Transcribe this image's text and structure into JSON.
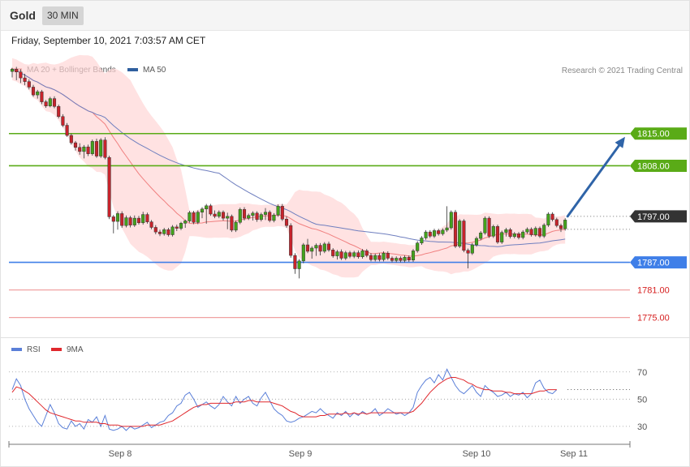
{
  "header": {
    "symbol": "Gold",
    "timeframe": "30 MIN",
    "datetime": "Friday, September 10, 2021 7:03:57 AM CET"
  },
  "legend": {
    "ma20": "MA 20 + Bollinger Bands",
    "ma50": "MA 50",
    "copyright": "Research © 2021 Trading Central"
  },
  "rsi_legend": {
    "rsi": "RSI",
    "ma": "9MA"
  },
  "colors": {
    "bull": "#43a31c",
    "bear": "#c8232b",
    "resistance": "#5aab17",
    "support": "#3f7fe8",
    "support_light": "#f0a2a2",
    "price": "#333333",
    "arrow": "#2f64a8",
    "bands": "#ffd6d6",
    "ma20": "#f08080",
    "ma50": "#6f7fbf",
    "rsi": "#5a7fd8",
    "rsi_ma": "#e0282d"
  },
  "chart_data": [
    {
      "type": "candlestick",
      "panel": "price",
      "y_range": [
        1770,
        1828
      ],
      "x_ticks": [
        "Sep 8",
        "Sep 9",
        "Sep 10",
        "Sep 11"
      ],
      "levels": [
        {
          "label": "1815.00",
          "value": 1815,
          "kind": "resistance"
        },
        {
          "label": "1808.00",
          "value": 1808,
          "kind": "resistance"
        },
        {
          "label": "1797.00",
          "value": 1797,
          "kind": "price"
        },
        {
          "label": "1787.00",
          "value": 1787,
          "kind": "support"
        },
        {
          "label": "1781.00",
          "value": 1781,
          "kind": "support_light"
        },
        {
          "label": "1775.00",
          "value": 1775,
          "kind": "support_light"
        }
      ],
      "forecast_arrow": {
        "from": 1797.0,
        "to": 1815.0
      },
      "candles": [
        [
          1828.5,
          1829.3,
          1827.2,
          1829.0
        ],
        [
          1829.0,
          1829.5,
          1826.6,
          1828.4
        ],
        [
          1828.4,
          1829.0,
          1826.0,
          1827.1
        ],
        [
          1827.1,
          1828.0,
          1825.5,
          1826.3
        ],
        [
          1826.3,
          1826.8,
          1824.6,
          1825.1
        ],
        [
          1825.1,
          1825.6,
          1823.0,
          1823.4
        ],
        [
          1823.4,
          1824.5,
          1822.6,
          1824.1
        ],
        [
          1824.1,
          1824.5,
          1821.4,
          1821.9
        ],
        [
          1821.9,
          1822.3,
          1820.6,
          1821.0
        ],
        [
          1821.0,
          1823.0,
          1820.7,
          1822.6
        ],
        [
          1822.6,
          1823.1,
          1820.5,
          1820.9
        ],
        [
          1820.9,
          1821.3,
          1818.3,
          1818.7
        ],
        [
          1818.7,
          1819.2,
          1816.4,
          1816.8
        ],
        [
          1816.8,
          1817.3,
          1814.3,
          1814.6
        ],
        [
          1814.6,
          1815.0,
          1812.6,
          1813.0
        ],
        [
          1813.0,
          1813.4,
          1811.3,
          1812.0
        ],
        [
          1812.0,
          1812.9,
          1810.4,
          1811.1
        ],
        [
          1811.1,
          1812.5,
          1809.6,
          1812.1
        ],
        [
          1812.1,
          1812.6,
          1810.1,
          1810.6
        ],
        [
          1810.6,
          1813.7,
          1810.2,
          1813.3
        ],
        [
          1813.3,
          1813.9,
          1809.7,
          1810.1
        ],
        [
          1810.1,
          1814.0,
          1809.7,
          1813.6
        ],
        [
          1813.6,
          1814.2,
          1809.4,
          1809.8
        ],
        [
          1809.8,
          1810.2,
          1796.4,
          1796.9
        ],
        [
          1796.9,
          1797.3,
          1793.3,
          1795.9
        ],
        [
          1795.9,
          1798.1,
          1794.1,
          1797.6
        ],
        [
          1797.6,
          1798.1,
          1794.5,
          1795.0
        ],
        [
          1795.0,
          1797.2,
          1794.6,
          1796.7
        ],
        [
          1796.7,
          1797.1,
          1794.6,
          1795.1
        ],
        [
          1795.1,
          1797.2,
          1794.7,
          1796.6
        ],
        [
          1796.6,
          1797.1,
          1795.2,
          1795.6
        ],
        [
          1795.6,
          1798.0,
          1795.2,
          1797.4
        ],
        [
          1797.4,
          1797.8,
          1795.4,
          1795.8
        ],
        [
          1795.8,
          1796.2,
          1794.2,
          1794.6
        ],
        [
          1794.6,
          1795.1,
          1793.1,
          1793.6
        ],
        [
          1793.6,
          1794.1,
          1792.7,
          1793.2
        ],
        [
          1793.2,
          1794.5,
          1792.8,
          1794.1
        ],
        [
          1794.1,
          1794.5,
          1792.6,
          1793.0
        ],
        [
          1793.0,
          1795.1,
          1792.6,
          1794.7
        ],
        [
          1794.7,
          1795.2,
          1793.8,
          1794.4
        ],
        [
          1794.4,
          1795.8,
          1794.0,
          1795.5
        ],
        [
          1795.5,
          1796.3,
          1794.5,
          1796.0
        ],
        [
          1796.0,
          1798.2,
          1795.6,
          1797.8
        ],
        [
          1797.8,
          1798.2,
          1795.3,
          1795.7
        ],
        [
          1795.7,
          1798.3,
          1795.3,
          1797.9
        ],
        [
          1797.9,
          1799.0,
          1796.6,
          1798.6
        ],
        [
          1798.6,
          1799.7,
          1795.4,
          1799.3
        ],
        [
          1799.3,
          1799.7,
          1797.1,
          1797.5
        ],
        [
          1797.5,
          1798.3,
          1796.6,
          1797.0
        ],
        [
          1797.0,
          1798.3,
          1796.6,
          1797.9
        ],
        [
          1797.9,
          1798.3,
          1796.1,
          1796.6
        ],
        [
          1796.6,
          1797.8,
          1794.2,
          1797.0
        ],
        [
          1797.0,
          1797.4,
          1793.6,
          1794.0
        ],
        [
          1794.0,
          1796.1,
          1793.6,
          1795.7
        ],
        [
          1795.7,
          1798.9,
          1795.3,
          1798.5
        ],
        [
          1798.5,
          1799.0,
          1796.1,
          1796.6
        ],
        [
          1796.6,
          1797.6,
          1796.2,
          1797.2
        ],
        [
          1797.2,
          1798.1,
          1796.1,
          1797.7
        ],
        [
          1797.7,
          1798.1,
          1795.8,
          1796.3
        ],
        [
          1796.3,
          1797.8,
          1795.9,
          1797.4
        ],
        [
          1797.4,
          1798.8,
          1796.2,
          1797.9
        ],
        [
          1797.9,
          1798.3,
          1795.7,
          1796.1
        ],
        [
          1796.1,
          1797.7,
          1795.7,
          1797.3
        ],
        [
          1797.3,
          1799.6,
          1796.9,
          1799.2
        ],
        [
          1799.2,
          1799.7,
          1796.0,
          1796.4
        ],
        [
          1796.4,
          1797.0,
          1794.5,
          1795.0
        ],
        [
          1795.0,
          1795.5,
          1788.0,
          1788.5
        ],
        [
          1788.5,
          1789.0,
          1784.5,
          1785.6
        ],
        [
          1785.6,
          1787.7,
          1783.5,
          1787.3
        ],
        [
          1787.3,
          1791.2,
          1786.8,
          1790.8
        ],
        [
          1790.8,
          1792.1,
          1789.0,
          1789.4
        ],
        [
          1789.4,
          1790.5,
          1787.8,
          1790.1
        ],
        [
          1790.1,
          1791.1,
          1788.4,
          1790.7
        ],
        [
          1790.7,
          1791.2,
          1788.5,
          1789.4
        ],
        [
          1789.4,
          1791.4,
          1789.0,
          1791.0
        ],
        [
          1791.0,
          1791.5,
          1789.3,
          1789.7
        ],
        [
          1789.7,
          1790.1,
          1788.0,
          1788.4
        ],
        [
          1788.4,
          1789.7,
          1787.6,
          1789.3
        ],
        [
          1789.3,
          1789.8,
          1787.5,
          1787.9
        ],
        [
          1787.9,
          1789.5,
          1787.5,
          1789.1
        ],
        [
          1789.1,
          1789.5,
          1787.9,
          1788.3
        ],
        [
          1788.3,
          1789.5,
          1787.9,
          1789.1
        ],
        [
          1789.1,
          1789.6,
          1787.8,
          1788.2
        ],
        [
          1788.2,
          1789.9,
          1787.8,
          1789.5
        ],
        [
          1789.5,
          1789.9,
          1788.1,
          1788.5
        ],
        [
          1788.5,
          1789.0,
          1787.2,
          1787.6
        ],
        [
          1787.6,
          1788.9,
          1787.2,
          1788.5
        ],
        [
          1788.5,
          1789.0,
          1787.2,
          1787.6
        ],
        [
          1787.6,
          1789.4,
          1787.2,
          1789.0
        ],
        [
          1789.0,
          1789.4,
          1787.5,
          1787.9
        ],
        [
          1787.9,
          1788.3,
          1787.0,
          1787.4
        ],
        [
          1787.4,
          1788.3,
          1787.0,
          1787.9
        ],
        [
          1787.9,
          1788.3,
          1787.0,
          1787.4
        ],
        [
          1787.4,
          1788.5,
          1787.0,
          1788.1
        ],
        [
          1788.1,
          1788.5,
          1787.1,
          1787.5
        ],
        [
          1787.5,
          1789.9,
          1787.1,
          1789.5
        ],
        [
          1789.5,
          1791.6,
          1789.1,
          1791.2
        ],
        [
          1791.2,
          1792.7,
          1790.8,
          1792.3
        ],
        [
          1792.3,
          1794.0,
          1791.9,
          1793.6
        ],
        [
          1793.6,
          1794.0,
          1792.3,
          1792.7
        ],
        [
          1792.7,
          1794.3,
          1792.3,
          1793.9
        ],
        [
          1793.9,
          1794.3,
          1792.8,
          1793.2
        ],
        [
          1793.2,
          1794.4,
          1792.8,
          1794.0
        ],
        [
          1794.0,
          1799.2,
          1793.6,
          1794.5
        ],
        [
          1794.5,
          1798.3,
          1794.1,
          1797.9
        ],
        [
          1797.9,
          1798.4,
          1790.1,
          1790.5
        ],
        [
          1790.5,
          1796.4,
          1790.1,
          1796.0
        ],
        [
          1796.0,
          1796.4,
          1789.2,
          1789.6
        ],
        [
          1789.6,
          1790.0,
          1785.7,
          1789.0
        ],
        [
          1789.0,
          1791.2,
          1788.6,
          1790.8
        ],
        [
          1790.8,
          1792.6,
          1790.4,
          1792.2
        ],
        [
          1792.2,
          1793.8,
          1791.8,
          1793.4
        ],
        [
          1793.4,
          1797.0,
          1793.0,
          1796.6
        ],
        [
          1796.6,
          1797.0,
          1792.3,
          1792.7
        ],
        [
          1792.7,
          1795.2,
          1792.3,
          1794.8
        ],
        [
          1794.8,
          1795.2,
          1791.0,
          1791.4
        ],
        [
          1791.4,
          1793.9,
          1791.0,
          1793.5
        ],
        [
          1793.5,
          1794.5,
          1792.6,
          1794.1
        ],
        [
          1794.1,
          1794.5,
          1792.2,
          1792.6
        ],
        [
          1792.6,
          1793.6,
          1792.2,
          1793.2
        ],
        [
          1793.2,
          1793.6,
          1792.0,
          1792.4
        ],
        [
          1792.4,
          1794.0,
          1792.0,
          1793.6
        ],
        [
          1793.6,
          1794.6,
          1793.2,
          1794.2
        ],
        [
          1794.2,
          1794.6,
          1792.6,
          1793.0
        ],
        [
          1793.0,
          1794.8,
          1792.6,
          1794.4
        ],
        [
          1794.4,
          1794.8,
          1792.3,
          1792.7
        ],
        [
          1792.7,
          1795.5,
          1792.3,
          1795.1
        ],
        [
          1795.1,
          1797.9,
          1794.7,
          1797.5
        ],
        [
          1797.5,
          1797.9,
          1795.9,
          1796.3
        ],
        [
          1796.3,
          1796.7,
          1794.6,
          1795.0
        ],
        [
          1795.0,
          1795.4,
          1793.6,
          1794.3
        ],
        [
          1794.3,
          1796.6,
          1793.9,
          1796.2
        ]
      ]
    },
    {
      "type": "line",
      "panel": "rsi",
      "y_ticks": [
        70,
        50,
        30
      ],
      "y_range": [
        18,
        80
      ],
      "series": [
        {
          "name": "RSI",
          "values": [
            57,
            65,
            60,
            50,
            43,
            38,
            33,
            30,
            38,
            46,
            40,
            32,
            29,
            28,
            34,
            30,
            32,
            28,
            35,
            33,
            37,
            30,
            38,
            28,
            27,
            28,
            30,
            27,
            30,
            28,
            29,
            31,
            33,
            29,
            31,
            33,
            34,
            38,
            40,
            45,
            47,
            53,
            55,
            50,
            44,
            46,
            48,
            45,
            43,
            46,
            52,
            48,
            45,
            52,
            47,
            50,
            52,
            47,
            45,
            51,
            55,
            49,
            43,
            40,
            38,
            34,
            33,
            34,
            36,
            37,
            39,
            41,
            40,
            43,
            40,
            38,
            36,
            40,
            38,
            41,
            37,
            40,
            38,
            41,
            39,
            40,
            43,
            38,
            40,
            43,
            41,
            39,
            40,
            38,
            40,
            44,
            55,
            60,
            64,
            66,
            62,
            68,
            64,
            72,
            66,
            60,
            56,
            54,
            57,
            60,
            55,
            52,
            60,
            57,
            55,
            52,
            53,
            55,
            52,
            54,
            53,
            55,
            51,
            54,
            62,
            64,
            58,
            55,
            54,
            57
          ]
        },
        {
          "name": "9MA",
          "values": [
            55,
            59,
            58,
            56,
            54,
            51,
            48,
            45,
            42,
            40,
            39,
            38,
            37,
            36,
            35,
            34,
            34,
            33,
            33,
            33,
            33,
            32,
            32,
            31,
            31,
            31,
            30,
            30,
            30,
            30,
            30,
            30,
            31,
            31,
            31,
            31,
            32,
            33,
            34,
            36,
            38,
            40,
            42,
            44,
            45,
            46,
            46,
            47,
            47,
            47,
            47,
            47,
            47,
            48,
            48,
            48,
            49,
            49,
            48,
            48,
            48,
            48,
            47,
            46,
            45,
            43,
            41,
            40,
            38,
            37,
            37,
            37,
            37,
            38,
            38,
            39,
            39,
            39,
            39,
            40,
            39,
            40,
            39,
            40,
            39,
            40,
            40,
            40,
            40,
            40,
            40,
            40,
            40,
            40,
            40,
            41,
            44,
            47,
            51,
            55,
            58,
            61,
            63,
            65,
            66,
            66,
            65,
            64,
            62,
            61,
            59,
            58,
            57,
            57,
            56,
            56,
            56,
            55,
            55,
            54,
            54,
            54,
            54,
            54,
            55,
            56,
            56,
            57,
            57,
            57
          ]
        }
      ]
    }
  ]
}
